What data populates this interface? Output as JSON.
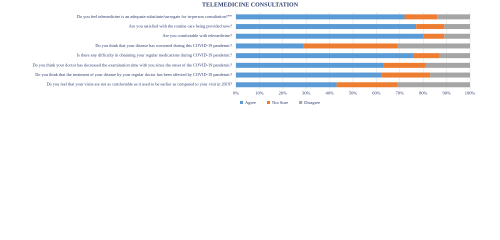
{
  "chart_data": {
    "type": "stacked-bar-horizontal",
    "title": "TELEMEDICINE CONSULTATION",
    "categories": [
      "Do you feel telemedicine is an adequate substitute/surrogate for in-person consultation?**",
      "Are you satisfied with the routine care being provided now?",
      "Are you comfortable with telemedicine?",
      "Do you think that your disease has worsened during this COVID-19 pandemic?",
      "Is there any difficulty in obtaining your regular medications during COVID-19 pandemic?",
      "Do you think your doctor has decreased the examination time with you since the onset of the COVID-19 pandemic?",
      "Do you think that the treatment of your disease by your regular doctor has been affected by COVID-19 pandemic?",
      "Do you feel that your visits are not as comfortable as it used to be earlier as compared to your visit in 2019?"
    ],
    "series": [
      {
        "name": "Agree",
        "color": "#5b9bd5",
        "values": [
          72,
          77,
          80,
          29,
          76,
          63,
          62,
          43
        ]
      },
      {
        "name": "Not Sure",
        "color": "#ed7d31",
        "values": [
          14,
          12,
          9,
          40,
          11,
          18,
          21,
          26
        ]
      },
      {
        "name": "Disagree",
        "color": "#a5a5a5",
        "values": [
          14,
          11,
          11,
          31,
          13,
          19,
          17,
          31
        ]
      }
    ],
    "xlim": [
      0,
      100
    ],
    "xticks": [
      {
        "value": 0,
        "label": "0%"
      },
      {
        "value": 10,
        "label": "10%"
      },
      {
        "value": 20,
        "label": "20%"
      },
      {
        "value": 30,
        "label": "30%"
      },
      {
        "value": 40,
        "label": "40%"
      },
      {
        "value": 50,
        "label": "50%"
      },
      {
        "value": 60,
        "label": "60%"
      },
      {
        "value": 70,
        "label": "70%"
      },
      {
        "value": 80,
        "label": "80%"
      },
      {
        "value": 90,
        "label": "90%"
      },
      {
        "value": 100,
        "label": "100%"
      }
    ],
    "grid": true,
    "legend": "bottom"
  }
}
